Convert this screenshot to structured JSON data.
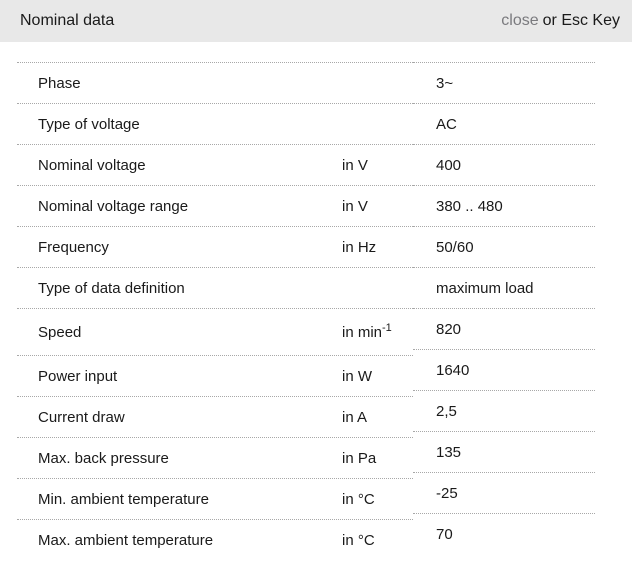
{
  "header": {
    "title": "Nominal data",
    "close_label": "close",
    "close_suffix": "or Esc Key"
  },
  "colors": {
    "header_bg": "#e8e8e8",
    "text": "#1a1a1a",
    "close_link": "#7a7a7e",
    "divider": "#a8a8a8"
  },
  "table": {
    "rows": [
      {
        "label": "Phase",
        "unit": "",
        "unit_sup": "",
        "value": "3~"
      },
      {
        "label": "Type of voltage",
        "unit": "",
        "unit_sup": "",
        "value": "AC"
      },
      {
        "label": "Nominal voltage",
        "unit": "in V",
        "unit_sup": "",
        "value": "400"
      },
      {
        "label": "Nominal voltage range",
        "unit": "in V",
        "unit_sup": "",
        "value": "380 .. 480"
      },
      {
        "label": "Frequency",
        "unit": "in Hz",
        "unit_sup": "",
        "value": "50/60"
      },
      {
        "label": "Type of data definition",
        "unit": "",
        "unit_sup": "",
        "value": "maximum load"
      },
      {
        "label": "Speed",
        "unit": "in min",
        "unit_sup": "-1",
        "value": "820"
      },
      {
        "label": "Power input",
        "unit": "in W",
        "unit_sup": "",
        "value": "1640"
      },
      {
        "label": "Current draw",
        "unit": "in A",
        "unit_sup": "",
        "value": "2,5"
      },
      {
        "label": "Max. back pressure",
        "unit": "in Pa",
        "unit_sup": "",
        "value": "135"
      },
      {
        "label": "Min. ambient temperature",
        "unit": "in °C",
        "unit_sup": "",
        "value": "-25"
      },
      {
        "label": "Max. ambient temperature",
        "unit": "in °C",
        "unit_sup": "",
        "value": "70"
      }
    ]
  }
}
